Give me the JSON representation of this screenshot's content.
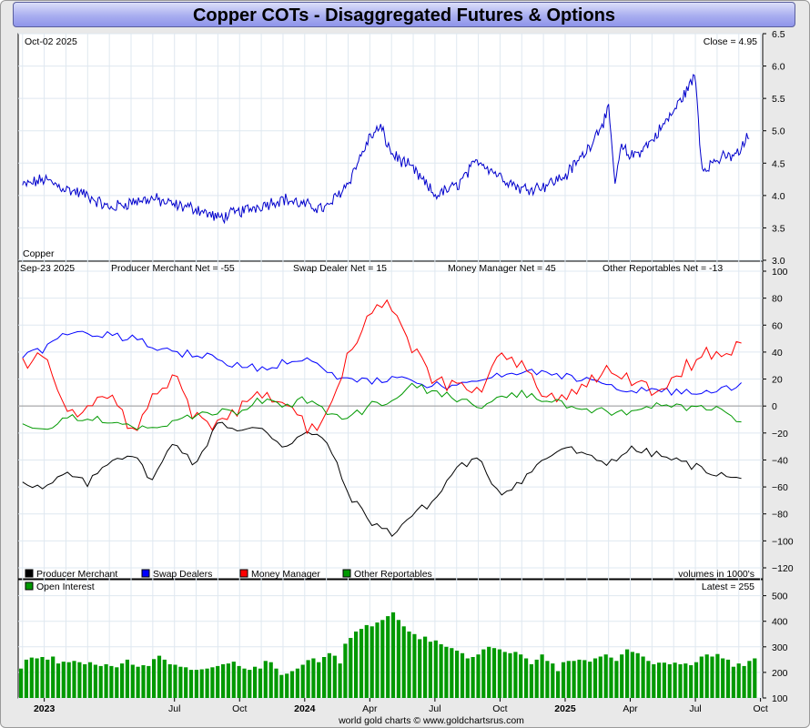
{
  "title": "Copper COTs - Disaggregated Futures & Options",
  "footer": "world gold charts © www.goldchartsrus.com",
  "colors": {
    "price": "#0000cc",
    "producer": "#000000",
    "swap": "#0000ff",
    "money": "#ff0000",
    "other": "#009900",
    "oi": "#009900"
  },
  "chart_data": [
    {
      "type": "line",
      "panel": "price",
      "title": "Copper",
      "date_label": "Oct-02  2025",
      "close_label": "Close = 4.95",
      "ylim": [
        3.0,
        6.5
      ],
      "yticks": [
        "6.5",
        "6.0",
        "5.5",
        "5.0",
        "4.5",
        "4.0",
        "3.5",
        "3.0"
      ],
      "yticks_values": [
        6.5,
        6.0,
        5.5,
        5.0,
        4.5,
        4.0,
        3.5,
        3.0
      ],
      "x_months_from_dec2022": [
        0,
        1,
        2,
        3,
        4,
        5,
        6,
        7,
        8,
        9,
        10,
        11,
        12,
        13,
        14,
        15,
        16,
        16.5,
        17,
        18,
        19,
        20,
        21,
        22,
        23,
        24,
        25,
        26,
        27,
        27.3,
        27.6,
        28,
        28.5,
        29,
        30,
        31,
        31.3,
        31.5,
        32,
        33,
        33.5
      ],
      "values": [
        4.15,
        4.25,
        4.1,
        4.0,
        3.8,
        3.9,
        3.95,
        3.85,
        3.8,
        3.65,
        3.75,
        3.85,
        3.95,
        3.85,
        3.8,
        4.2,
        4.9,
        5.05,
        4.65,
        4.4,
        4.0,
        4.15,
        4.55,
        4.3,
        4.1,
        4.15,
        4.3,
        4.7,
        5.3,
        4.2,
        4.75,
        4.6,
        4.7,
        4.85,
        5.3,
        5.85,
        4.4,
        4.45,
        4.55,
        4.65,
        4.95
      ]
    },
    {
      "type": "line",
      "panel": "net_positions",
      "date_label": "Sep-23  2025",
      "ylim": [
        -120,
        100
      ],
      "yticks": [
        "100",
        "80",
        "60",
        "40",
        "20",
        "0",
        "−20",
        "−40",
        "−60",
        "−80",
        "−100",
        "−120"
      ],
      "yticks_values": [
        100,
        80,
        60,
        40,
        20,
        0,
        -20,
        -40,
        -60,
        -80,
        -100,
        -120
      ],
      "x_months_from_dec2022": [
        0,
        1,
        2,
        3,
        4,
        5,
        6,
        7,
        8,
        9,
        10,
        11,
        12,
        13,
        14,
        15,
        16,
        17,
        18,
        19,
        20,
        21,
        22,
        23,
        24,
        25,
        26,
        27,
        28,
        29,
        30,
        31,
        32,
        33,
        33.3
      ],
      "series": [
        {
          "name": "Producer Merchant",
          "net_label": "Producer Merchant Net = -55",
          "values": [
            -55,
            -62,
            -50,
            -58,
            -40,
            -35,
            -55,
            -25,
            -45,
            -10,
            -20,
            -15,
            -30,
            -20,
            -25,
            -65,
            -85,
            -95,
            -80,
            -70,
            -45,
            -40,
            -65,
            -55,
            -40,
            -30,
            -38,
            -42,
            -32,
            -35,
            -40,
            -45,
            -50,
            -55,
            -55
          ]
        },
        {
          "name": "Swap Dealers",
          "net_label": "Swap Dealer Net = 15",
          "values": [
            38,
            42,
            55,
            55,
            52,
            50,
            45,
            40,
            38,
            35,
            30,
            28,
            32,
            35,
            25,
            20,
            18,
            20,
            18,
            15,
            15,
            18,
            22,
            25,
            24,
            22,
            20,
            15,
            12,
            12,
            10,
            10,
            12,
            15,
            15
          ]
        },
        {
          "name": "Money Manager",
          "net_label": "Money Manager Net = 45",
          "values": [
            30,
            40,
            -5,
            0,
            10,
            -20,
            5,
            25,
            -10,
            -15,
            0,
            10,
            5,
            -15,
            -10,
            40,
            70,
            75,
            40,
            20,
            15,
            10,
            40,
            30,
            10,
            5,
            15,
            25,
            20,
            10,
            20,
            35,
            40,
            42,
            45
          ]
        },
        {
          "name": "Other Reportables",
          "net_label": "Other Reportables Net = -13",
          "values": [
            -15,
            -18,
            -10,
            -8,
            -10,
            -15,
            -18,
            -10,
            -8,
            -5,
            -5,
            5,
            0,
            5,
            -5,
            -10,
            0,
            5,
            15,
            10,
            5,
            0,
            5,
            10,
            5,
            0,
            -2,
            -5,
            -5,
            0,
            0,
            -2,
            0,
            -10,
            -13
          ]
        }
      ]
    },
    {
      "type": "bar",
      "panel": "open_interest",
      "series_name": "Open Interest",
      "volume_note": "volumes in 1000's",
      "latest_label": "Latest = 255",
      "ylim": [
        100,
        520
      ],
      "yticks": [
        "500",
        "400",
        "300",
        "200",
        "100"
      ],
      "yticks_values": [
        500,
        400,
        300,
        200,
        100
      ],
      "values": [
        215,
        250,
        258,
        255,
        260,
        250,
        262,
        235,
        242,
        240,
        245,
        240,
        232,
        240,
        230,
        225,
        232,
        225,
        220,
        235,
        250,
        230,
        222,
        228,
        225,
        252,
        265,
        250,
        232,
        230,
        222,
        220,
        210,
        210,
        212,
        215,
        220,
        225,
        232,
        235,
        242,
        225,
        215,
        210,
        222,
        215,
        245,
        240,
        215,
        190,
        195,
        205,
        215,
        230,
        248,
        255,
        240,
        260,
        275,
        265,
        235,
        312,
        335,
        360,
        370,
        385,
        380,
        395,
        405,
        420,
        435,
        405,
        380,
        360,
        350,
        330,
        340,
        320,
        325,
        310,
        300,
        295,
        285,
        275,
        255,
        260,
        270,
        290,
        300,
        295,
        290,
        280,
        275,
        280,
        270,
        255,
        232,
        250,
        270,
        245,
        235,
        205,
        240,
        245,
        245,
        250,
        248,
        242,
        255,
        262,
        270,
        258,
        245,
        270,
        290,
        280,
        275,
        262,
        245,
        232,
        238,
        238,
        232,
        238,
        232,
        235,
        228,
        240,
        262,
        270,
        262,
        272,
        255,
        250,
        222,
        235,
        225,
        245,
        255
      ]
    }
  ],
  "x_axis": {
    "labels": [
      {
        "text": "2023",
        "month": 1,
        "bold": true
      },
      {
        "text": "Jul",
        "month": 7,
        "bold": false
      },
      {
        "text": "Oct",
        "month": 10,
        "bold": false
      },
      {
        "text": "2024",
        "month": 13,
        "bold": true
      },
      {
        "text": "Apr",
        "month": 16,
        "bold": false
      },
      {
        "text": "Jul",
        "month": 19,
        "bold": false
      },
      {
        "text": "Oct",
        "month": 22,
        "bold": false
      },
      {
        "text": "2025",
        "month": 25,
        "bold": true
      },
      {
        "text": "Apr",
        "month": 28,
        "bold": false
      },
      {
        "text": "Jul",
        "month": 31,
        "bold": false
      },
      {
        "text": "Oct",
        "month": 34,
        "bold": false
      }
    ]
  }
}
